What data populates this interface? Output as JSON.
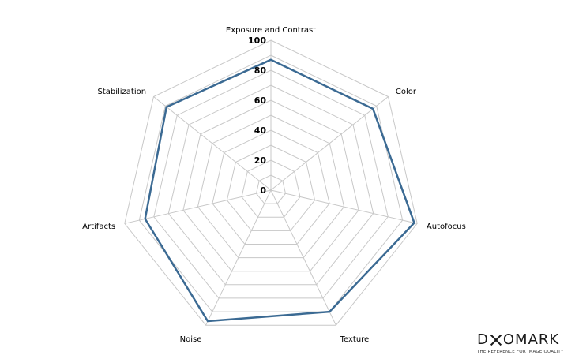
{
  "chart_data": {
    "type": "radar",
    "categories": [
      "Exposure and Contrast",
      "Color",
      "Autofocus",
      "Texture",
      "Noise",
      "Artifacts",
      "Stabilization"
    ],
    "series": [
      {
        "values": [
          87,
          87,
          98,
          90,
          97,
          86,
          89
        ]
      }
    ],
    "rlim": [
      0,
      100
    ],
    "ticks": [
      "0",
      "20",
      "40",
      "60",
      "80",
      "100"
    ],
    "series_color": "#3b6a93",
    "grid": true
  },
  "logo": {
    "brand_a": "D",
    "brand_b": "OMARK",
    "tagline": "THE REFERENCE FOR IMAGE QUALITY"
  }
}
